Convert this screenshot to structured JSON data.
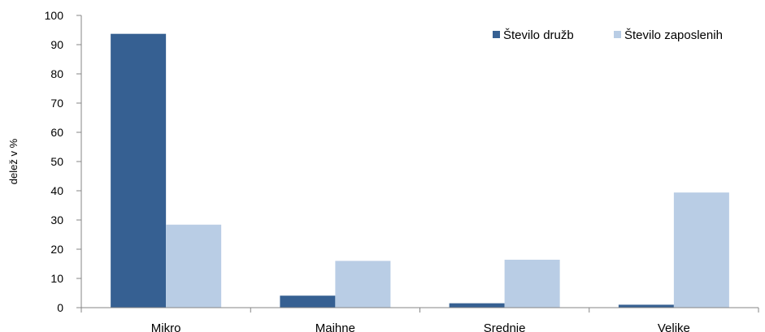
{
  "chart_data": {
    "type": "bar",
    "categories": [
      "Mikro",
      "Majhne",
      "Srednje",
      "Velike"
    ],
    "series": [
      {
        "name": "Število družb",
        "values": [
          93.7,
          4.1,
          1.5,
          1.0
        ],
        "color": "#366092"
      },
      {
        "name": "Število zaposlenih",
        "values": [
          28.4,
          16.0,
          16.4,
          39.4
        ],
        "color": "#B9CDE5"
      }
    ],
    "title": "",
    "xlabel": "",
    "ylabel": "delež v %",
    "ylim": [
      0,
      100
    ],
    "yticks": [
      0,
      10,
      20,
      30,
      40,
      50,
      60,
      70,
      80,
      90,
      100
    ],
    "grid": false,
    "legend_position": "top-right"
  }
}
